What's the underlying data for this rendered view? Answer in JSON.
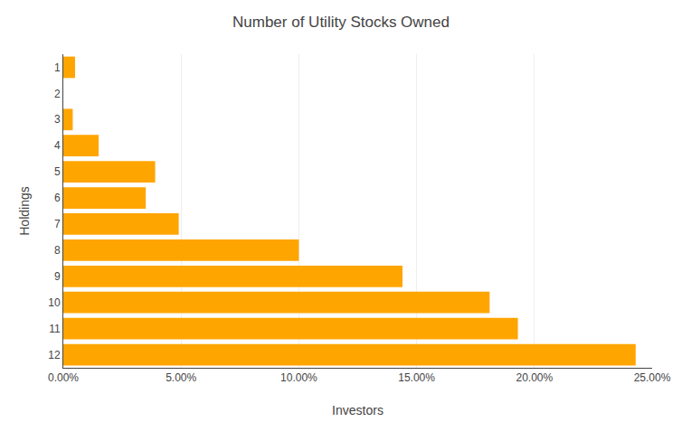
{
  "chart_data": {
    "type": "bar",
    "orientation": "horizontal",
    "title": "Number of Utility Stocks Owned",
    "xlabel": "Investors",
    "ylabel": "Holdings",
    "categories": [
      "1",
      "2",
      "3",
      "4",
      "5",
      "6",
      "7",
      "8",
      "9",
      "10",
      "11",
      "12"
    ],
    "values": [
      0.5,
      0.0,
      0.4,
      1.5,
      3.9,
      3.5,
      4.9,
      10.0,
      14.4,
      18.1,
      19.3,
      24.3
    ],
    "color": "#FFA500",
    "xlim": [
      0,
      25.0
    ],
    "xticks": [
      {
        "value": 0.0,
        "label": "0.00%"
      },
      {
        "value": 5.0,
        "label": "5.00%"
      },
      {
        "value": 10.0,
        "label": "10.00%"
      },
      {
        "value": 15.0,
        "label": "15.00%"
      },
      {
        "value": 20.0,
        "label": "20.00%"
      },
      {
        "value": 25.0,
        "label": "25.00%"
      }
    ],
    "grid": true
  }
}
